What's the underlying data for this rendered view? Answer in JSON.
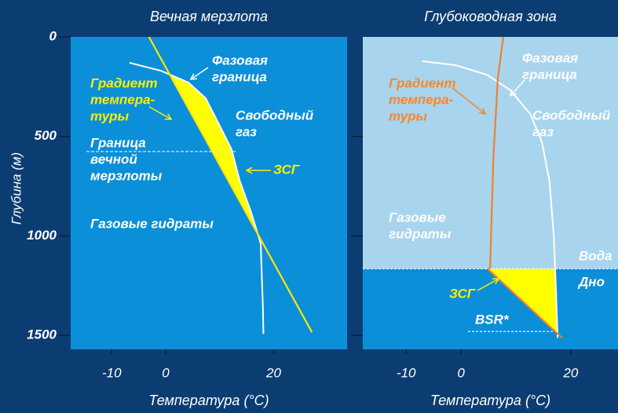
{
  "chart_data": [
    {
      "type": "line",
      "title": "Вечная мерзлота",
      "ylabel": "Глубина (м)",
      "xlabel": "Температура (°C)",
      "xlim": [
        -17.6,
        33.6
      ],
      "ylim": [
        1570,
        0
      ],
      "xticks": [
        -10,
        0,
        20
      ],
      "yticks": [
        0,
        500,
        1000,
        1500
      ],
      "show_ytick_labels": true,
      "plot_color": "#0b8fd9",
      "fill_color": "#ffff00",
      "series": [
        {
          "color": "#ffffff",
          "x": [
            -6.7,
            -0.9,
            4.2,
            7.4,
            10.0,
            12.2,
            13.7,
            15.8,
            17.6,
            17.8,
            18.0,
            18.1
          ],
          "values": [
            130,
            170,
            229,
            308,
            446,
            565,
            722,
            880,
            1038,
            1196,
            1354,
            1492
          ]
        },
        {
          "color": "#ffe600",
          "x": [
            -3.1,
            27.1
          ],
          "values": [
            0,
            1484
          ]
        }
      ],
      "permafrost_base": 576,
      "annotations": [
        {
          "lines": [
            "Фазовая",
            "граница"
          ],
          "color": "#ffffff"
        },
        {
          "lines": [
            "Градиент",
            "темпера-",
            "туры"
          ],
          "color": "#ffee00"
        },
        {
          "lines": [
            "Свободный",
            "газ"
          ],
          "color": "#ffffff"
        },
        {
          "lines": [
            "Граница",
            "вечной",
            "мерзлоты"
          ],
          "color": "#ffffff"
        },
        {
          "lines": [
            "ЗСГ"
          ],
          "color": "#ffee00"
        },
        {
          "lines": [
            "Газовые гидраты"
          ],
          "color": "#ffffff"
        }
      ]
    },
    {
      "type": "line",
      "title": "Глубоководная зона",
      "xlabel": "Температура (°C)",
      "xlim": [
        -17.9,
        28.6
      ],
      "ylim": [
        1570,
        0
      ],
      "xticks": [
        -10,
        0,
        20
      ],
      "yticks": [
        500,
        1000,
        1500
      ],
      "show_ytick_labels": false,
      "plot_color": "#0b8fd9",
      "water_color": "#a8d4ee",
      "fill_color": "#ffff00",
      "series": [
        {
          "color": "#ffffff",
          "x": [
            -7.1,
            -1.0,
            4.7,
            9.0,
            12.6,
            14.7,
            16.1,
            16.9,
            17.3,
            17.6
          ],
          "values": [
            122,
            142,
            190,
            268,
            387,
            525,
            722,
            998,
            1275,
            1512
          ]
        },
        {
          "color": "#f0802a",
          "x": [
            7.7,
            6.7,
            5.9,
            5.3,
            5.0,
            18.4
          ],
          "values": [
            0,
            209,
            604,
            1157,
            1169,
            1512
          ]
        }
      ],
      "seafloor": 1165,
      "bsr_depth": 1480,
      "annotations": [
        {
          "lines": [
            "Фазовая",
            "граница"
          ],
          "color": "#ffffff"
        },
        {
          "lines": [
            "Градиент",
            "темпера-",
            "туры"
          ],
          "color": "#f7872a"
        },
        {
          "lines": [
            "Свободный",
            "газ"
          ],
          "color": "#ffffff"
        },
        {
          "lines": [
            "Газовые",
            "гидраты"
          ],
          "color": "#ffffff"
        },
        {
          "lines": [
            "Вода"
          ],
          "color": "#ffffff"
        },
        {
          "lines": [
            "Дно"
          ],
          "color": "#ffffff"
        },
        {
          "lines": [
            "ЗСГ"
          ],
          "color": "#ffee00"
        },
        {
          "lines": [
            "BSR*"
          ],
          "color": "#ffffff"
        }
      ]
    }
  ]
}
